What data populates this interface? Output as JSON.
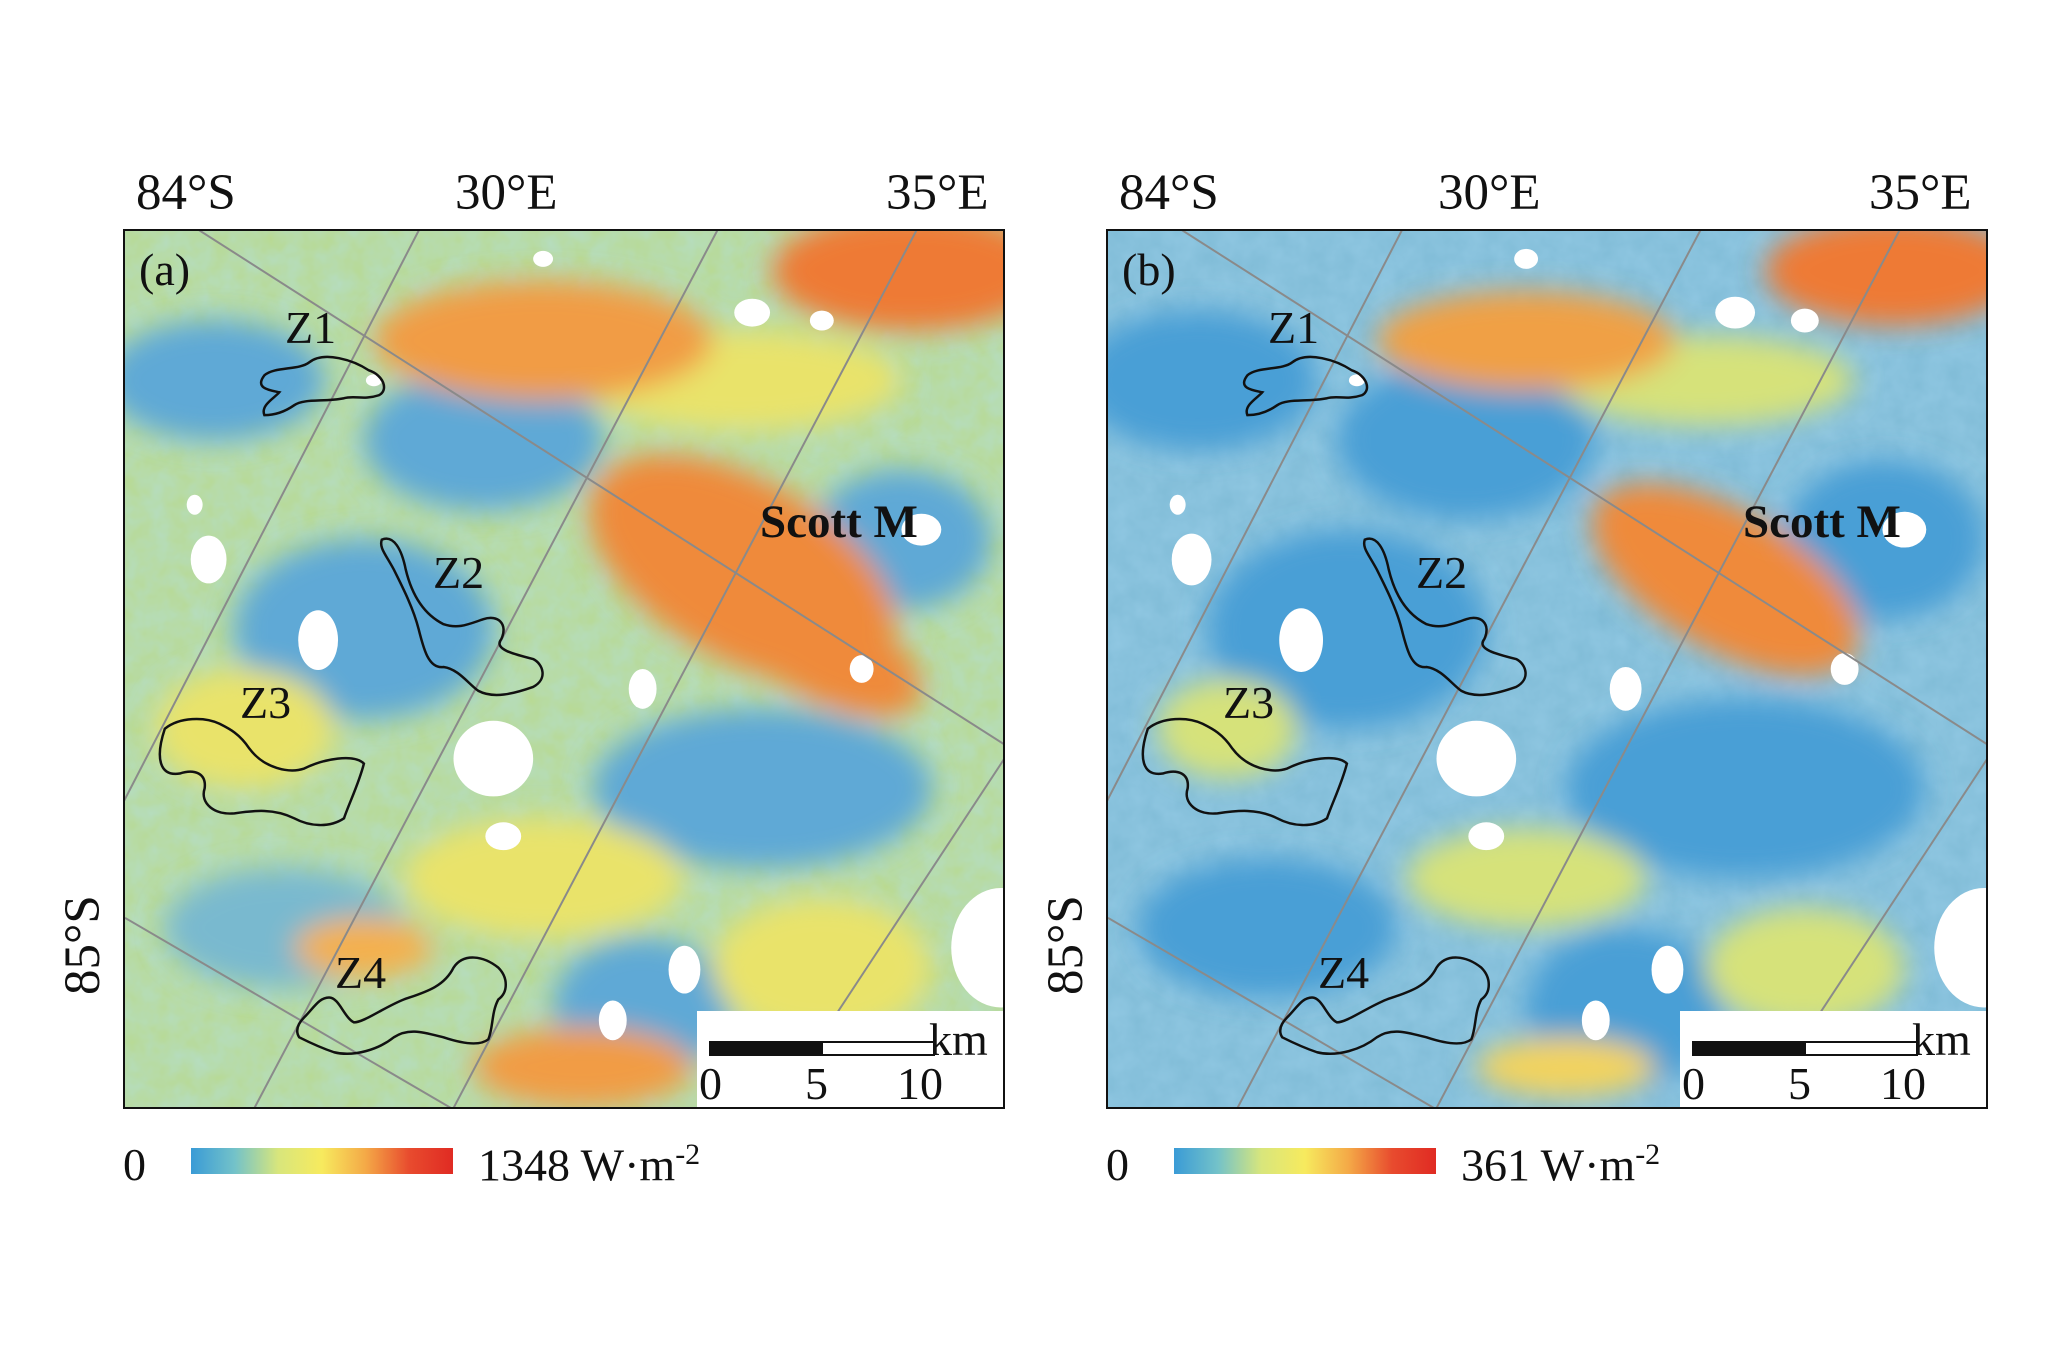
{
  "panels": [
    {
      "id": "a",
      "panel_label": "(a)",
      "coordinates": {
        "lat_top": "84°S",
        "lon_mid": "30°E",
        "lon_right": "35°E",
        "lat_left": "85°S"
      },
      "zones": [
        "Z1",
        "Z2",
        "Z3",
        "Z4"
      ],
      "feature_label": "Scott M",
      "scalebar": {
        "unit": "km",
        "ticks": [
          "0",
          "5",
          "10"
        ]
      },
      "legend": {
        "min": "0",
        "max": "1348",
        "unit": "W·m",
        "unit_exp": "-2"
      },
      "colors": {
        "low": "#3a9bd6",
        "mid": "#f7ea5e",
        "high": "#e02b23",
        "shadow": "#ffffff"
      }
    },
    {
      "id": "b",
      "panel_label": "(b)",
      "coordinates": {
        "lat_top": "84°S",
        "lon_mid": "30°E",
        "lon_right": "35°E",
        "lat_left": "85°S"
      },
      "zones": [
        "Z1",
        "Z2",
        "Z3",
        "Z4"
      ],
      "feature_label": "Scott M",
      "scalebar": {
        "unit": "km",
        "ticks": [
          "0",
          "5",
          "10"
        ]
      },
      "legend": {
        "min": "0",
        "max": "361",
        "unit": "W·m",
        "unit_exp": "-2"
      },
      "colors": {
        "low": "#3a9bd6",
        "mid": "#f7ea5e",
        "high": "#e02b23",
        "shadow": "#ffffff"
      }
    }
  ]
}
